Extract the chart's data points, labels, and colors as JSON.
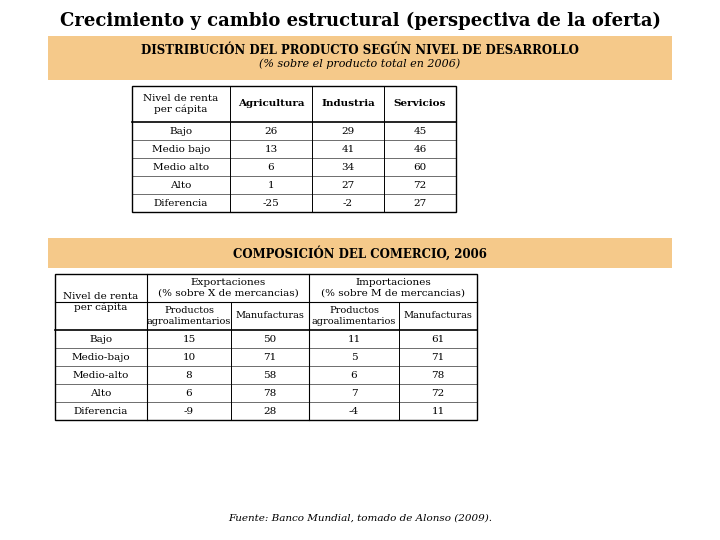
{
  "title": "Crecimiento y cambio estructural (perspectiva de la oferta)",
  "title_fontsize": 13,
  "background_color": "#ffffff",
  "banner_color": "#F5C98A",
  "table1_banner_text1": "DISTRIBUCIÓN DEL PRODUCTO SEGÚN NIVEL DE DESARROLLO",
  "table1_banner_text2": "(% sobre el producto total en 2006)",
  "table1_col_headers": [
    "Nivel de renta\nper cápita",
    "Agricultura",
    "Industria",
    "Servicios"
  ],
  "table1_rows": [
    [
      "Bajo",
      "26",
      "29",
      "45"
    ],
    [
      "Medio bajo",
      "13",
      "41",
      "46"
    ],
    [
      "Medio alto",
      "6",
      "34",
      "60"
    ],
    [
      "Alto",
      "1",
      "27",
      "72"
    ],
    [
      "Diferencia",
      "-25",
      "-2",
      "27"
    ]
  ],
  "table2_banner_text": "COMPOSICIÓN DEL COMERCIO, 2006",
  "table2_rows": [
    [
      "Bajo",
      "15",
      "50",
      "11",
      "61"
    ],
    [
      "Medio-bajo",
      "10",
      "71",
      "5",
      "71"
    ],
    [
      "Medio-alto",
      "8",
      "58",
      "6",
      "78"
    ],
    [
      "Alto",
      "6",
      "78",
      "7",
      "72"
    ],
    [
      "Diferencia",
      "-9",
      "28",
      "-4",
      "11"
    ]
  ],
  "footnote": "Fuente: Banco Mundial, tomado de Alonso (2009).",
  "footnote_fontsize": 7.5
}
